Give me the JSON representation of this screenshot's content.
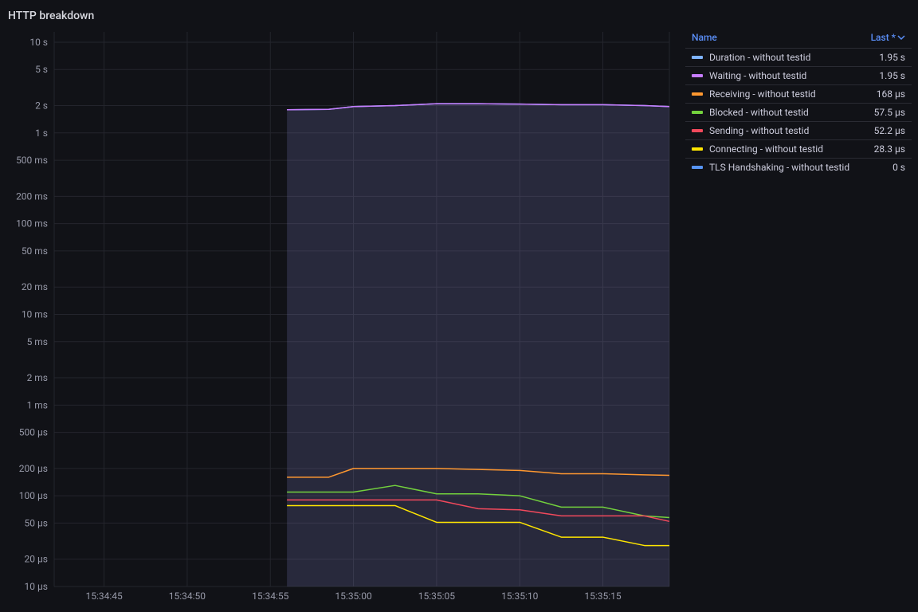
{
  "title": "HTTP breakdown",
  "background": "#111217",
  "grid_color": "#24252d",
  "text_color": "#ccccdc",
  "tick_color": "#9799a8",
  "legend_header_color": "#5b8ff9",
  "legend": {
    "name_header": "Name",
    "value_header": "Last *"
  },
  "chart": {
    "type": "line",
    "yscale": "log",
    "x_labels": [
      "15:34:45",
      "15:34:50",
      "15:34:55",
      "15:35:00",
      "15:35:05",
      "15:35:10",
      "15:35:15"
    ],
    "x_values_sec": [
      0,
      5,
      10,
      15,
      20,
      25,
      30
    ],
    "x_lim_sec": [
      -3,
      34
    ],
    "data_x_sec": [
      11,
      13.5,
      15,
      17.5,
      20,
      22.5,
      25,
      27.5,
      30,
      32.5,
      34
    ],
    "y_ticks": [
      {
        "v": 1e-05,
        "label": "10 µs"
      },
      {
        "v": 2e-05,
        "label": "20 µs"
      },
      {
        "v": 5e-05,
        "label": "50 µs"
      },
      {
        "v": 0.0001,
        "label": "100 µs"
      },
      {
        "v": 0.0002,
        "label": "200 µs"
      },
      {
        "v": 0.0005,
        "label": "500 µs"
      },
      {
        "v": 0.001,
        "label": "1 ms"
      },
      {
        "v": 0.002,
        "label": "2 ms"
      },
      {
        "v": 0.005,
        "label": "5 ms"
      },
      {
        "v": 0.01,
        "label": "10 ms"
      },
      {
        "v": 0.02,
        "label": "20 ms"
      },
      {
        "v": 0.05,
        "label": "50 ms"
      },
      {
        "v": 0.1,
        "label": "100 ms"
      },
      {
        "v": 0.2,
        "label": "200 ms"
      },
      {
        "v": 0.5,
        "label": "500 ms"
      },
      {
        "v": 1,
        "label": "1 s"
      },
      {
        "v": 2,
        "label": "2 s"
      },
      {
        "v": 5,
        "label": "5 s"
      },
      {
        "v": 10,
        "label": "10 s"
      }
    ],
    "y_lim": [
      1e-05,
      13
    ],
    "series": [
      {
        "name": "Duration - without testid",
        "color": "#7fb3ff",
        "last": "1.95 s",
        "fill": true,
        "fill_color": "rgba(127,179,255,0.08)",
        "y": [
          1.8,
          1.82,
          1.95,
          2.0,
          2.1,
          2.1,
          2.08,
          2.05,
          2.05,
          2.0,
          1.95
        ]
      },
      {
        "name": "Waiting - without testid",
        "color": "#c77dff",
        "last": "1.95 s",
        "fill": true,
        "fill_color": "rgba(160,120,200,0.12)",
        "y": [
          1.8,
          1.82,
          1.95,
          2.0,
          2.1,
          2.1,
          2.08,
          2.05,
          2.05,
          2.0,
          1.95
        ]
      },
      {
        "name": "Receiving - without testid",
        "color": "#ff9830",
        "last": "168 µs",
        "y": [
          0.00016,
          0.00016,
          0.0002,
          0.0002,
          0.0002,
          0.000195,
          0.00019,
          0.000175,
          0.000175,
          0.00017,
          0.000168
        ]
      },
      {
        "name": "Blocked - without testid",
        "color": "#73d13d",
        "last": "57.5 µs",
        "y": [
          0.00011,
          0.00011,
          0.00011,
          0.00013,
          0.000105,
          0.000105,
          0.0001,
          7.5e-05,
          7.5e-05,
          6e-05,
          5.75e-05
        ]
      },
      {
        "name": "Sending - without testid",
        "color": "#f2495c",
        "last": "52.2 µs",
        "y": [
          9e-05,
          9e-05,
          9e-05,
          9e-05,
          9e-05,
          7.2e-05,
          7e-05,
          6e-05,
          6e-05,
          6e-05,
          5.22e-05
        ]
      },
      {
        "name": "Connecting - without testid",
        "color": "#ffe600",
        "last": "28.3 µs",
        "y": [
          7.8e-05,
          7.8e-05,
          7.8e-05,
          7.8e-05,
          5.1e-05,
          5.1e-05,
          5.1e-05,
          3.5e-05,
          3.5e-05,
          2.83e-05,
          2.83e-05
        ]
      },
      {
        "name": "TLS Handshaking - without testid",
        "color": "#5794f2",
        "last": "0 s",
        "y": null
      }
    ]
  }
}
